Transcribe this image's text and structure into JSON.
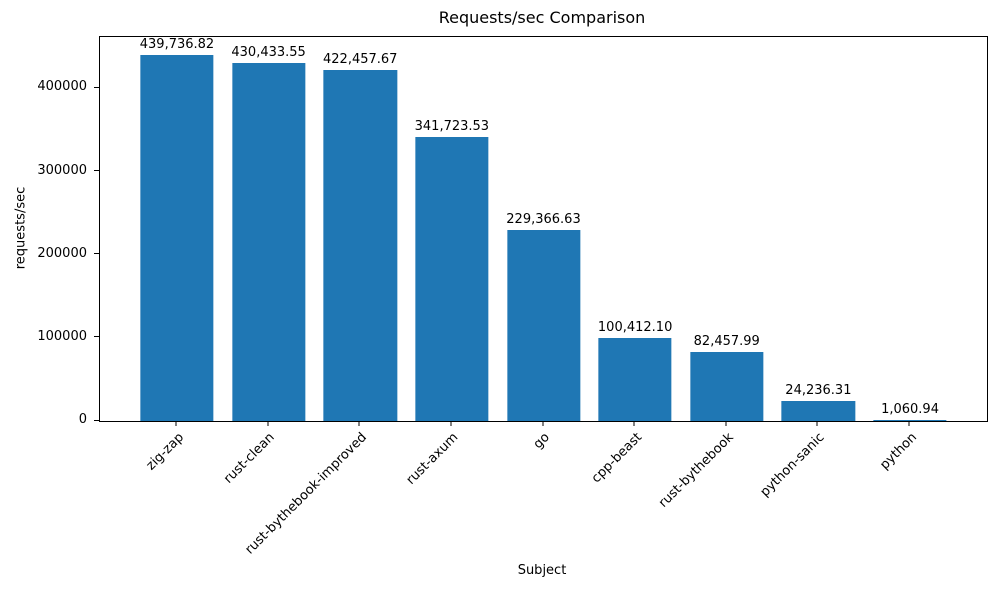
{
  "chart_data": {
    "type": "bar",
    "title": "Requests/sec Comparison",
    "xlabel": "Subject",
    "ylabel": "requests/sec",
    "categories": [
      "zig-zap",
      "rust-clean",
      "rust-bythebook-improved",
      "rust-axum",
      "go",
      "cpp-beast",
      "rust-bythebook",
      "python-sanic",
      "python"
    ],
    "values": [
      439736.82,
      430433.55,
      422457.67,
      341723.53,
      229366.63,
      100412.1,
      82457.99,
      24236.31,
      1060.94
    ],
    "value_labels": [
      "439,736.82",
      "430,433.55",
      "422,457.67",
      "341,723.53",
      "229,366.63",
      "100,412.10",
      "82,457.99",
      "24,236.31",
      "1,060.94"
    ],
    "ylim": [
      0,
      461723.66
    ],
    "yticks": [
      0,
      100000,
      200000,
      300000,
      400000
    ],
    "ytick_labels": [
      "0",
      "100000",
      "200000",
      "300000",
      "400000"
    ],
    "bar_color": "#1f77b4",
    "axis_color": "#000000",
    "text_color": "#000000",
    "background_color": "#ffffff",
    "grid": false,
    "legend": null,
    "x_tick_rotation": 45
  }
}
